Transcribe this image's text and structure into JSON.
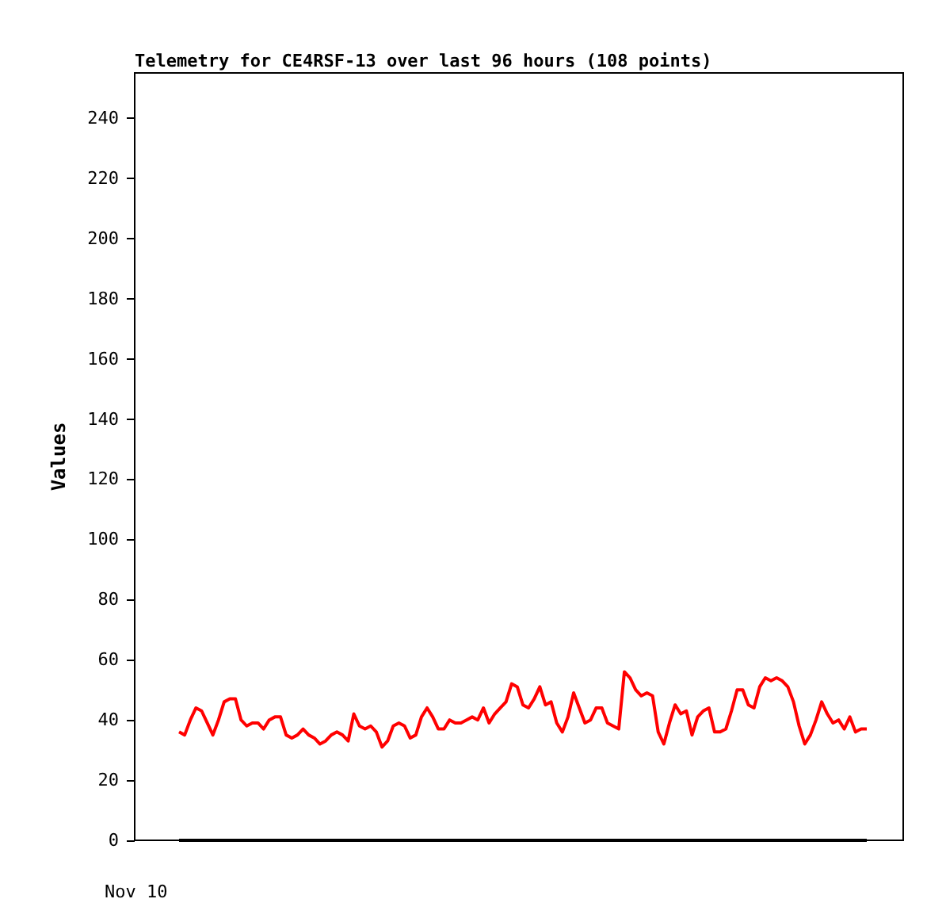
{
  "chart_data": {
    "type": "line",
    "title": "Telemetry for CE4RSF-13 over last 96 hours (108 points)",
    "ylabel": "Values",
    "annotations": [
      "Nov 10"
    ],
    "ylim": [
      0,
      255
    ],
    "yticks": [
      0,
      20,
      40,
      60,
      80,
      100,
      120,
      140,
      160,
      180,
      200,
      220,
      240
    ],
    "line_style": "solid",
    "categories": [
      null,
      null,
      null,
      null,
      null,
      null,
      null,
      null,
      null,
      null,
      null,
      null,
      null,
      null,
      null,
      null,
      null,
      null,
      null,
      null,
      null,
      null,
      null,
      null,
      null,
      null,
      null,
      null,
      null,
      null,
      null,
      null,
      null,
      null,
      null,
      null,
      null,
      null,
      null,
      null,
      null,
      null,
      null,
      null,
      null,
      null,
      null,
      null,
      null,
      null,
      null,
      null,
      null,
      null,
      null,
      null,
      null,
      null,
      null,
      null,
      null,
      null,
      null,
      null,
      null,
      null,
      null,
      null,
      null,
      null,
      null,
      null,
      null,
      null,
      null,
      null,
      null,
      null,
      null,
      null,
      null,
      null,
      null,
      null,
      null,
      null,
      null,
      null,
      null,
      null,
      null,
      null,
      null,
      null,
      null,
      null,
      null,
      null,
      null,
      null,
      null,
      null,
      null,
      null,
      null,
      null,
      null,
      null,
      null,
      null,
      null,
      null,
      null,
      null,
      null,
      null,
      null,
      null,
      null,
      null,
      null,
      null,
      null
    ],
    "series": [
      {
        "color": "#ff0000",
        "values": [
          36,
          35,
          40,
          44,
          43,
          39,
          35,
          40,
          46,
          47,
          47,
          40,
          38,
          39,
          39,
          37,
          40,
          41,
          41,
          35,
          34,
          35,
          37,
          35,
          34,
          32,
          33,
          35,
          36,
          35,
          33,
          42,
          38,
          37,
          38,
          36,
          31,
          33,
          38,
          39,
          38,
          34,
          35,
          41,
          44,
          41,
          37,
          37,
          40,
          39,
          39,
          40,
          41,
          40,
          44,
          39,
          42,
          44,
          46,
          52,
          51,
          45,
          44,
          47,
          51,
          45,
          46,
          39,
          36,
          41,
          49,
          44,
          39,
          40,
          44,
          44,
          39,
          38,
          37,
          56,
          54,
          50,
          48,
          49,
          48,
          36,
          32,
          39,
          45,
          42,
          43,
          35,
          41,
          43,
          44,
          36,
          36,
          37,
          43,
          50,
          50,
          45,
          44,
          51,
          54,
          53,
          54,
          53,
          51,
          46,
          38,
          32,
          35,
          40,
          46,
          42,
          39,
          40,
          37,
          41,
          36,
          37,
          37
        ]
      },
      {
        "color": "#000000",
        "values": [
          0,
          0,
          0,
          0,
          0,
          0,
          0,
          0,
          0,
          0,
          0,
          0,
          0,
          0,
          0,
          0,
          0,
          0,
          0,
          0,
          0,
          0,
          0,
          0,
          0,
          0,
          0,
          0,
          0,
          0,
          0,
          0,
          0,
          0,
          0,
          0,
          0,
          0,
          0,
          0,
          0,
          0,
          0,
          0,
          0,
          0,
          0,
          0,
          0,
          0,
          0,
          0,
          0,
          0,
          0,
          0,
          0,
          0,
          0,
          0,
          0,
          0,
          0,
          0,
          0,
          0,
          0,
          0,
          0,
          0,
          0,
          0,
          0,
          0,
          0,
          0,
          0,
          0,
          0,
          0,
          0,
          0,
          0,
          0,
          0,
          0,
          0,
          0,
          0,
          0,
          0,
          0,
          0,
          0,
          0,
          0,
          0,
          0,
          0,
          0,
          0,
          0,
          0,
          0,
          0,
          0,
          0,
          0,
          0,
          0,
          0,
          0,
          0,
          0,
          0,
          0,
          0,
          0,
          0,
          0,
          0,
          0,
          0
        ]
      }
    ]
  }
}
